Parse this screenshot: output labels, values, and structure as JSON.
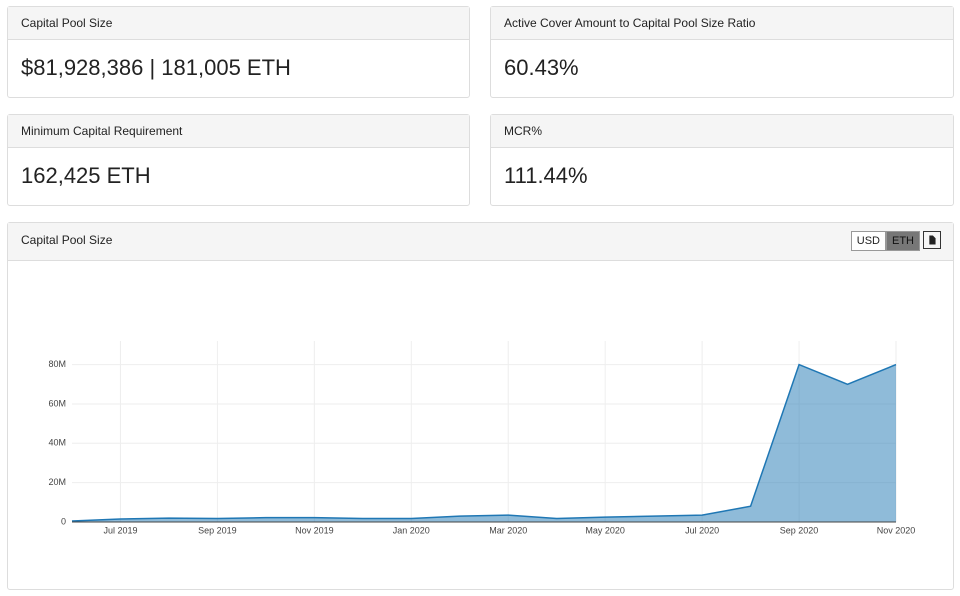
{
  "cards": [
    {
      "title": "Capital Pool Size",
      "value": "$81,928,386 | 181,005 ETH"
    },
    {
      "title": "Active Cover Amount to Capital Pool Size Ratio",
      "value": "60.43%"
    },
    {
      "title": "Minimum Capital Requirement",
      "value": "162,425 ETH"
    },
    {
      "title": "MCR%",
      "value": "111.44%"
    }
  ],
  "chart_panel": {
    "title": "Capital Pool Size",
    "buttons": [
      "USD",
      "ETH"
    ]
  },
  "chart_data": {
    "type": "area",
    "color": "#1f77b4",
    "x": [
      "2019-06",
      "2019-07",
      "2019-08",
      "2019-09",
      "2019-10",
      "2019-11",
      "2019-12",
      "2020-01",
      "2020-02",
      "2020-03",
      "2020-04",
      "2020-05",
      "2020-06",
      "2020-07",
      "2020-08",
      "2020-09",
      "2020-10",
      "2020-11"
    ],
    "values": [
      500000,
      1500000,
      2000000,
      1800000,
      2200000,
      2200000,
      1800000,
      1800000,
      3000000,
      3500000,
      1800000,
      2500000,
      3000000,
      3500000,
      8000000,
      80000000,
      70000000,
      80000000
    ],
    "xlim": [
      "2019-06",
      "2020-11"
    ],
    "xticks": [
      {
        "value": "2019-07",
        "label": "Jul 2019"
      },
      {
        "value": "2019-09",
        "label": "Sep 2019"
      },
      {
        "value": "2019-11",
        "label": "Nov 2019"
      },
      {
        "value": "2020-01",
        "label": "Jan 2020"
      },
      {
        "value": "2020-03",
        "label": "Mar 2020"
      },
      {
        "value": "2020-05",
        "label": "May 2020"
      },
      {
        "value": "2020-07",
        "label": "Jul 2020"
      },
      {
        "value": "2020-09",
        "label": "Sep 2020"
      },
      {
        "value": "2020-11",
        "label": "Nov 2020"
      }
    ],
    "ylim": [
      0,
      92000000
    ],
    "yticks": [
      0,
      {
        "value": 20000000,
        "label": "20M"
      },
      {
        "value": 40000000,
        "label": "40M"
      },
      {
        "value": 60000000,
        "label": "60M"
      },
      {
        "value": 80000000,
        "label": "80M"
      }
    ],
    "grid": true
  }
}
